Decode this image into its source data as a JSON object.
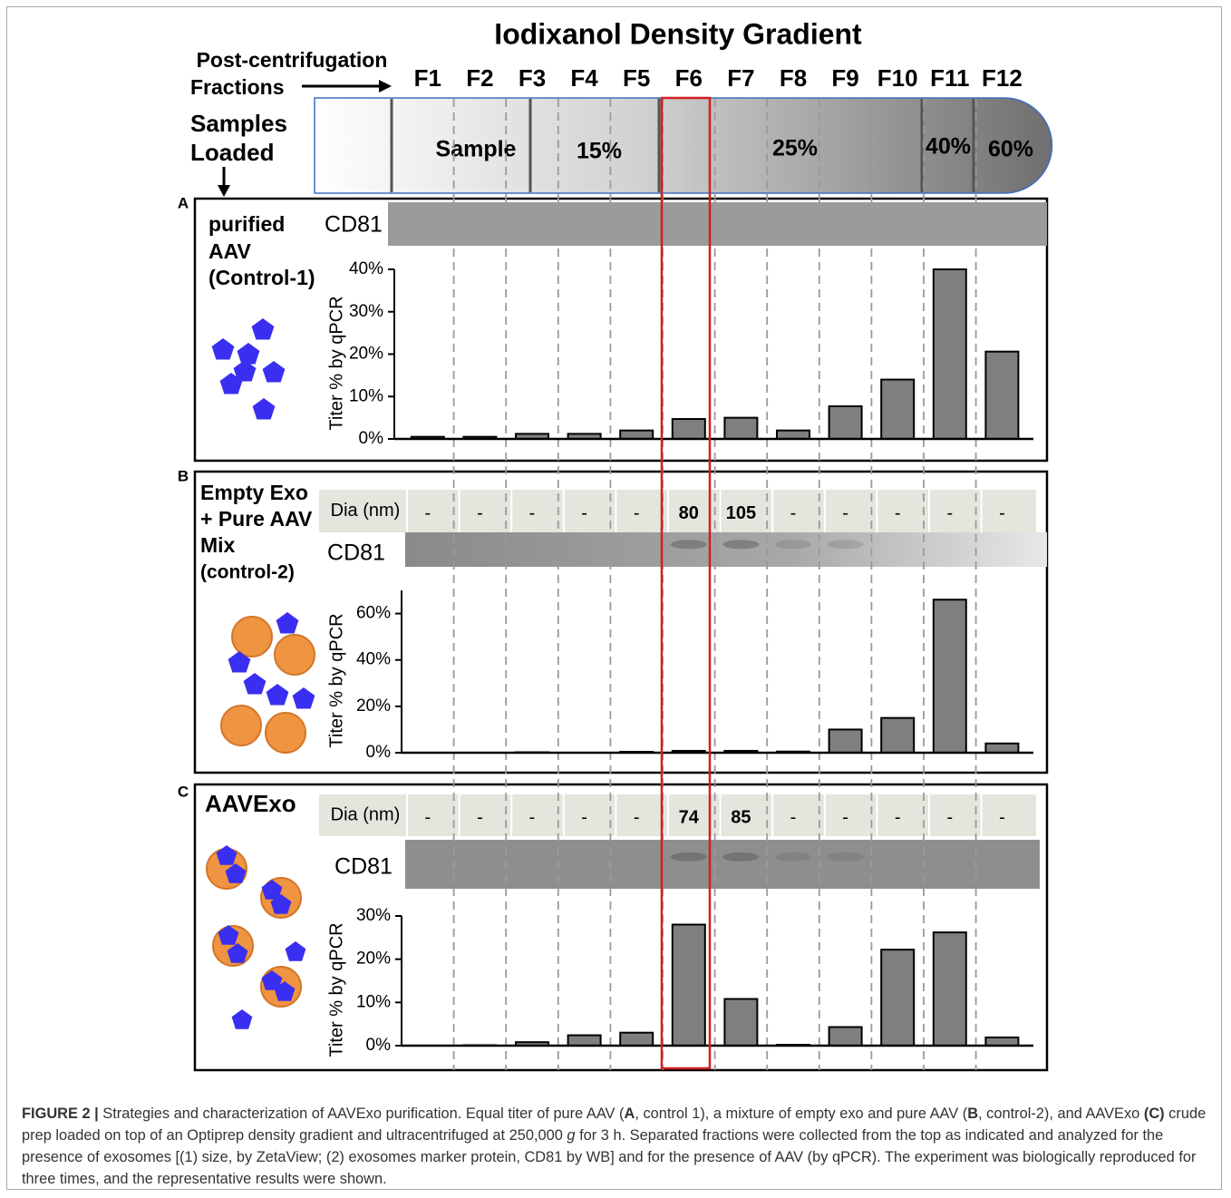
{
  "gradient": {
    "title": "Iodixanol Density Gradient",
    "fractions_label": [
      "Post-centrifugation",
      "Fractions"
    ],
    "samples_label": [
      "Samples",
      "Loaded"
    ],
    "layers": [
      "Sample",
      "15%",
      "25%",
      "40%",
      "60%"
    ]
  },
  "panels": [
    {
      "letter": "A",
      "label": [
        "purified",
        "AAV",
        "(Control-1)"
      ],
      "blot": "CD81"
    },
    {
      "letter": "B",
      "label": [
        "Empty Exo",
        "+ Pure AAV",
        "Mix",
        "(control-2)"
      ],
      "dia_label": "Dia (nm)",
      "dia": [
        "-",
        "-",
        "-",
        "-",
        "-",
        80,
        105,
        "-",
        "-",
        "-",
        "-",
        "-"
      ],
      "blot": "CD81"
    },
    {
      "letter": "C",
      "label": [
        "AAVExo"
      ],
      "dia_label": "Dia (nm)",
      "dia": [
        "-",
        "-",
        "-",
        "-",
        "-",
        74,
        85,
        "-",
        "-",
        "-",
        "-",
        "-"
      ],
      "blot": "CD81"
    }
  ],
  "chart_data": [
    {
      "type": "bar",
      "y_label": "Titer % by qPCR",
      "color": "#7f7f7f",
      "categories": [
        "F1",
        "F2",
        "F3",
        "F4",
        "F5",
        "F6",
        "F7",
        "F8",
        "F9",
        "F10",
        "F11",
        "F12"
      ],
      "values": [
        0.5,
        0.5,
        1.2,
        1.2,
        2,
        4.7,
        5,
        2,
        7.7,
        14,
        40,
        20.6
      ],
      "ylim": [
        0,
        40
      ],
      "yticks": [
        {
          "value": 0,
          "label": "0%"
        },
        {
          "value": 10,
          "label": "10%"
        },
        {
          "value": 20,
          "label": "20%"
        },
        {
          "value": 30,
          "label": "30%"
        },
        {
          "value": 40,
          "label": "40%"
        }
      ]
    },
    {
      "type": "bar",
      "y_label": "Titer % by qPCR",
      "color": "#7f7f7f",
      "values": [
        0,
        0,
        0.2,
        0,
        0.4,
        0.8,
        0.8,
        0.5,
        10,
        15,
        66,
        4
      ],
      "ylim": [
        0,
        70
      ],
      "yticks": [
        {
          "value": 0,
          "label": "0%"
        },
        {
          "value": 20,
          "label": "20%"
        },
        {
          "value": 40,
          "label": "40%"
        },
        {
          "value": 60,
          "label": "60%"
        }
      ]
    },
    {
      "type": "bar",
      "y_label": "Titer % by qPCR",
      "color": "#7f7f7f",
      "values": [
        0,
        0.1,
        0.8,
        2.4,
        3,
        28,
        10.8,
        0.2,
        4.3,
        22.2,
        26.2,
        1.9
      ],
      "ylim": [
        0,
        30
      ],
      "yticks": [
        {
          "value": 0,
          "label": "0%"
        },
        {
          "value": 10,
          "label": "10%"
        },
        {
          "value": 20,
          "label": "20%"
        },
        {
          "value": 30,
          "label": "30%"
        }
      ]
    }
  ],
  "caption": {
    "label": "FIGURE 2 |",
    "runs": [
      " Strategies and characterization of AAVExo purification. Equal titer of pure AAV (",
      "A",
      ", control 1), a mixture of empty exo and pure AAV (",
      "B",
      ", control-2), and AAVExo ",
      "(C)",
      " crude prep loaded on top of an Optiprep density gradient and ultracentrifuged at 250,000 ",
      "g",
      " for 3 h. Separated fractions were collected from the top as indicated and analyzed for the presence of exosomes [(1) size, by ZetaView; (2) exosomes marker protein, CD81 by WB] and for the presence of AAV (by qPCR). The experiment was biologically reproduced for three times, and the representative results were shown."
    ]
  }
}
